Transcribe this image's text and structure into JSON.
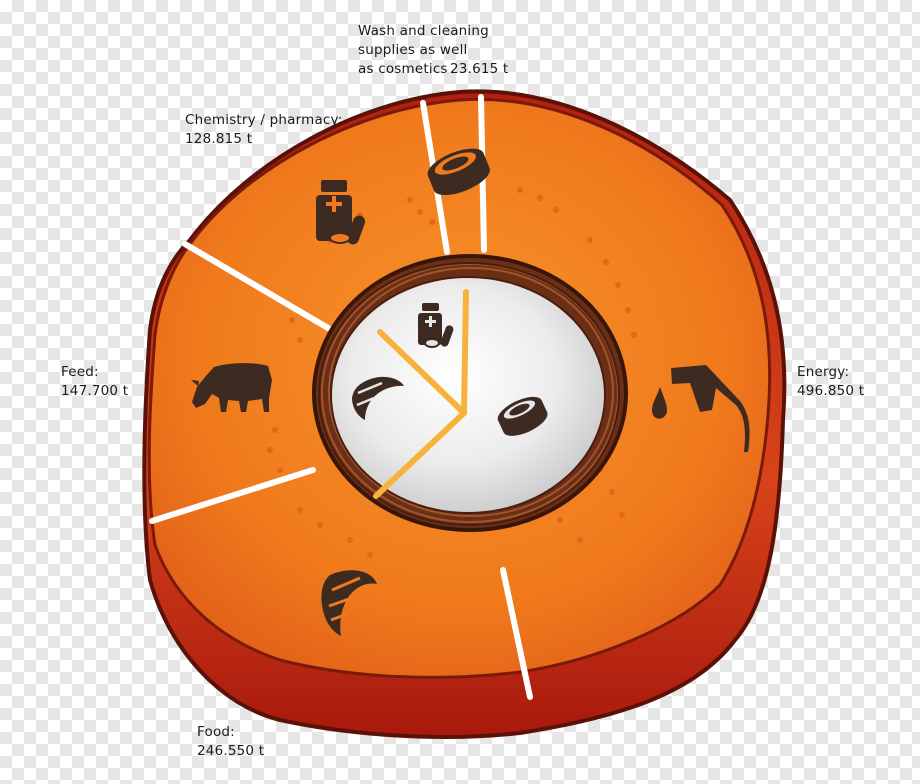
{
  "categories": {
    "wash": {
      "name_lines": [
        "Wash and cleaning",
        "supplies as well",
        "as cosmetics"
      ],
      "value": "23.615 t"
    },
    "chemistry": {
      "name": "Chemistry / pharmacy:",
      "value": "128.815 t"
    },
    "feed": {
      "name": "Feed:",
      "value": "147.700 t"
    },
    "energy": {
      "name": "Energy:",
      "value": "496.850 t"
    },
    "food": {
      "name": "Food:",
      "value": "246.550 t"
    }
  },
  "icons": [
    "cosmetics-jar-icon",
    "pills-bottle-icon",
    "cow-icon",
    "fuel-pump-icon",
    "croissant-icon"
  ],
  "colors": {
    "outer_flesh": "#f07a1c",
    "outer_rim": "#c23412",
    "shell": "#6b2f17",
    "kernel": "#ececec",
    "inner_lines": "#f7b23b",
    "icon": "#3d2b22",
    "dividers": "#ffffff"
  }
}
